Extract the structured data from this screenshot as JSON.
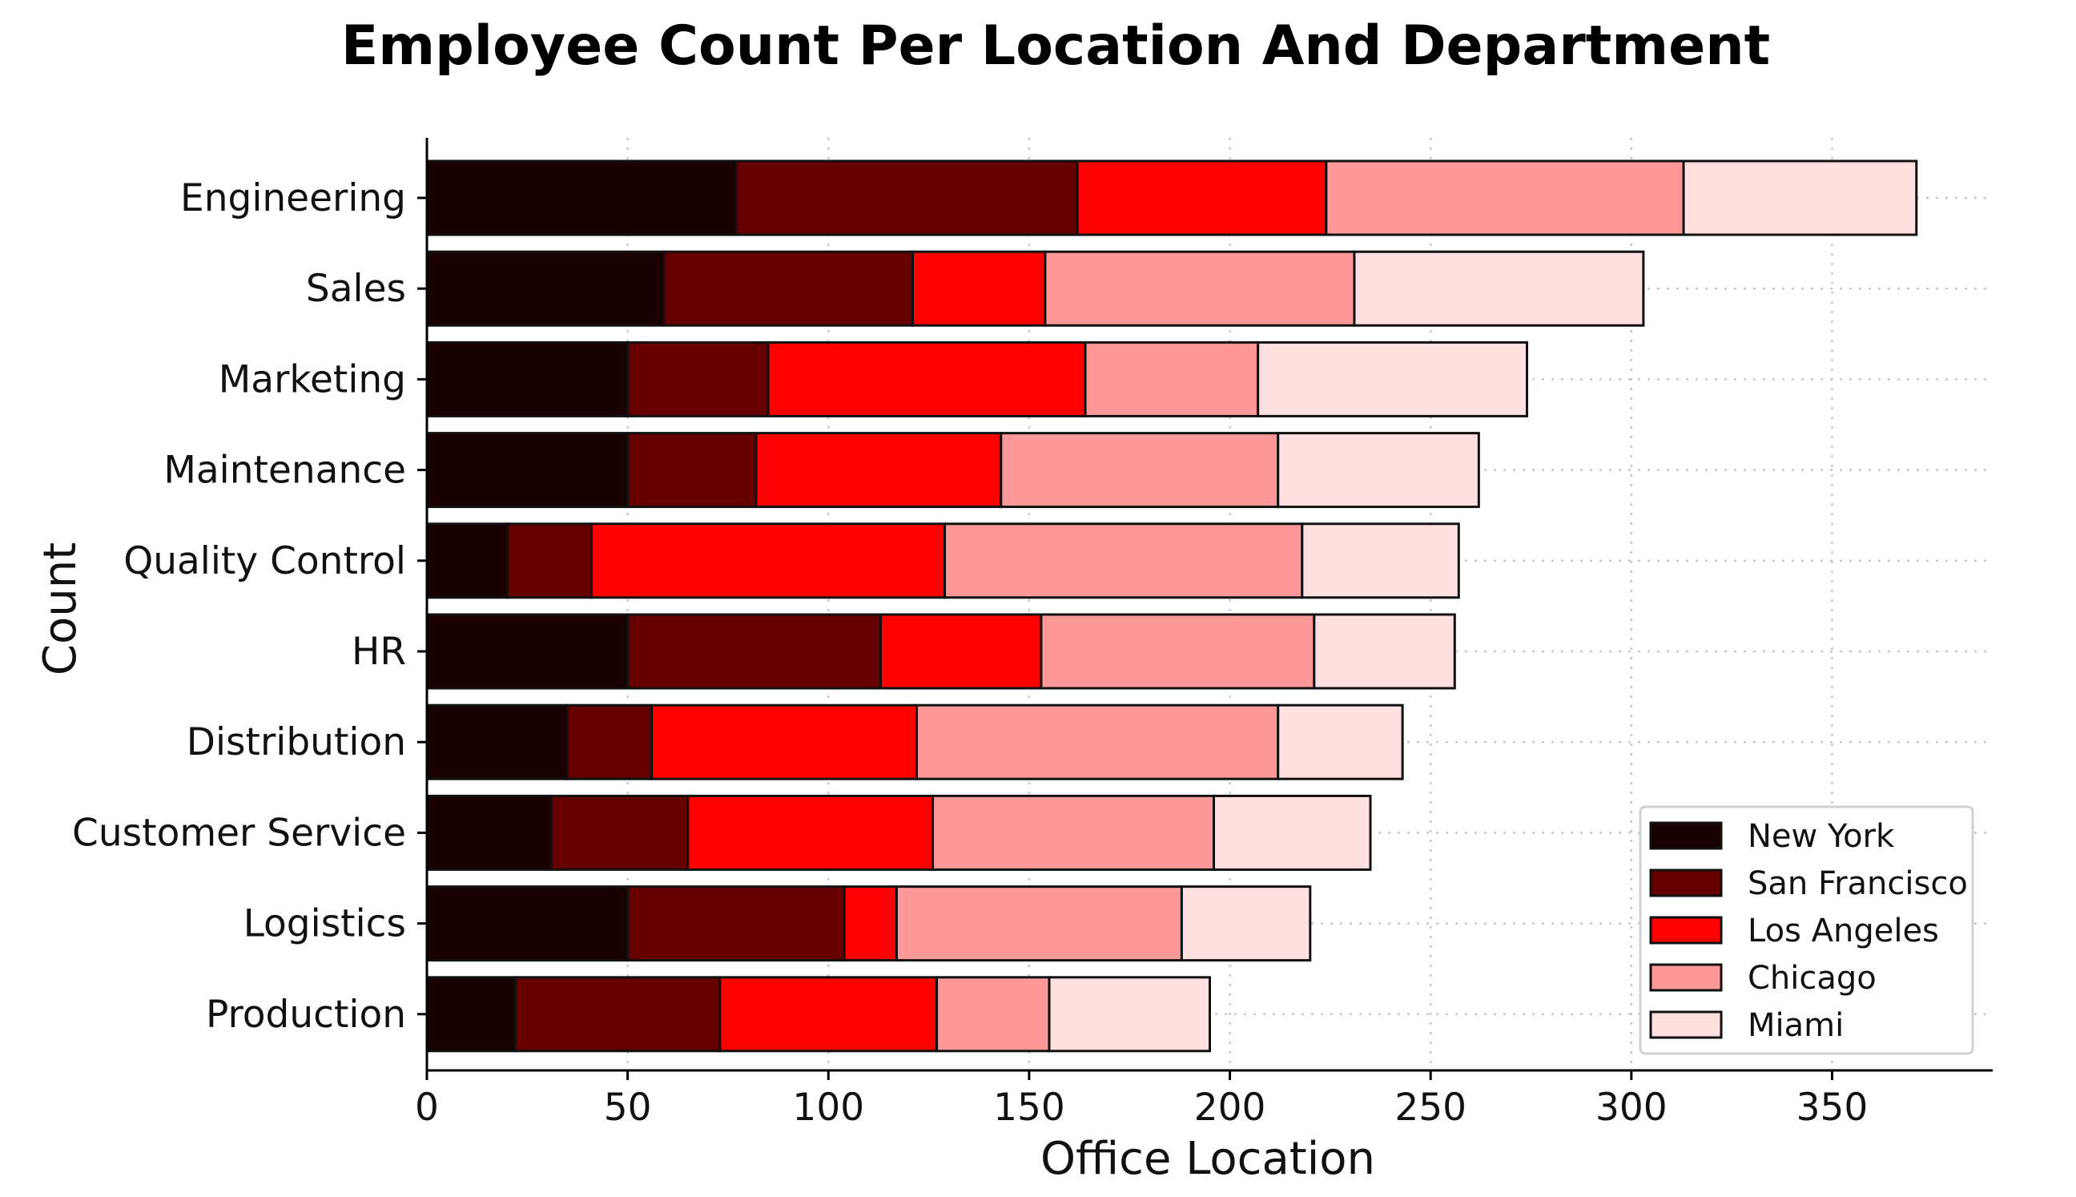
{
  "chart_data": {
    "type": "bar",
    "orientation": "horizontal",
    "stacked": true,
    "title": "Employee Count Per Location And Department",
    "xlabel": "Office Location",
    "ylabel": "Count",
    "xlim": [
      0,
      390
    ],
    "xticks": [
      0,
      50,
      100,
      150,
      200,
      250,
      300,
      350
    ],
    "grid": true,
    "legend_position": "bottom-right",
    "categories": [
      "Engineering",
      "Sales",
      "Marketing",
      "Maintenance",
      "Quality Control",
      "HR",
      "Distribution",
      "Customer Service",
      "Logistics",
      "Production"
    ],
    "series": [
      {
        "name": "New York",
        "color": "#1a0000",
        "values": [
          77,
          59,
          50,
          50,
          20,
          50,
          35,
          31,
          50,
          22
        ]
      },
      {
        "name": "San Francisco",
        "color": "#660000",
        "values": [
          85,
          62,
          35,
          32,
          21,
          63,
          21,
          34,
          54,
          51
        ]
      },
      {
        "name": "Los Angeles",
        "color": "#ff0000",
        "values": [
          62,
          33,
          79,
          61,
          88,
          40,
          66,
          61,
          13,
          54
        ]
      },
      {
        "name": "Chicago",
        "color": "#ff9999",
        "values": [
          89,
          77,
          43,
          69,
          89,
          68,
          90,
          70,
          71,
          28
        ]
      },
      {
        "name": "Miami",
        "color": "#ffe0e0",
        "values": [
          58,
          72,
          67,
          50,
          39,
          35,
          31,
          39,
          32,
          40
        ]
      }
    ]
  }
}
